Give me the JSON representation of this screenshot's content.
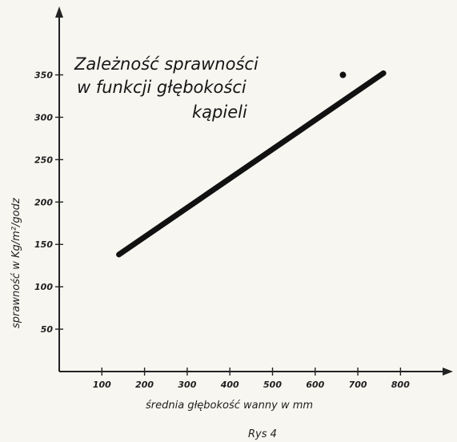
{
  "chart_data": {
    "type": "line",
    "title_lines": [
      "Zależność sprawności",
      "w funkcji głębokości",
      "kąpieli"
    ],
    "xlabel": "średnia głębokość wanny w mm",
    "ylabel": "sprawność w Kg/m²/godz",
    "caption": "Rys 4",
    "xlim": [
      0,
      900
    ],
    "ylim": [
      0,
      390
    ],
    "x_ticks": [
      100,
      200,
      300,
      400,
      500,
      600,
      700,
      800
    ],
    "y_ticks": [
      50,
      100,
      150,
      200,
      250,
      300,
      350
    ],
    "grid": false,
    "series": [
      {
        "x": [
          140,
          760
        ],
        "y": [
          138,
          352
        ]
      }
    ],
    "scatter_points": [
      {
        "x": 665,
        "y": 350
      }
    ],
    "colors": {
      "line": "#111111",
      "axis": "#222222",
      "paper": "#f7f6f1"
    }
  }
}
